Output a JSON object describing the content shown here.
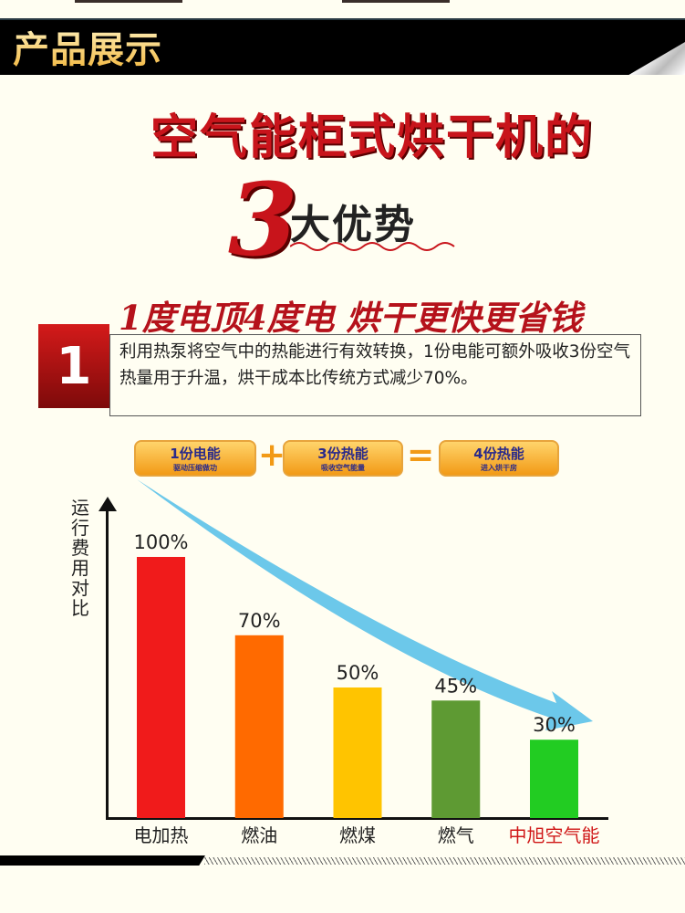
{
  "banner": {
    "title": "产品展示"
  },
  "headline": {
    "line1": "空气能柜式烘干机的",
    "number": "3",
    "line2": "大优势"
  },
  "advantage": {
    "number": "1",
    "slogan": "1度电顶4度电  烘干更快更省钱",
    "description": "利用热泵将空气中的热能进行有效转换，1份电能可额外吸收3份空气热量用于升温，烘干成本比传统方式减少70%。"
  },
  "equation": {
    "items": [
      {
        "title": "1份电能",
        "sub": "驱动压缩做功"
      },
      {
        "title": "3份热能",
        "sub": "吸收空气能量"
      },
      {
        "title": "4份热能",
        "sub": "进入烘干房"
      }
    ],
    "plus": "+",
    "equals": "="
  },
  "chart_data": {
    "type": "bar",
    "ylabel": "运行费用对比",
    "categories": [
      "电加热",
      "燃油",
      "燃煤",
      "燃气",
      "中旭空气能"
    ],
    "values": [
      100,
      70,
      50,
      45,
      30
    ],
    "labels": [
      "100%",
      "70%",
      "50%",
      "45%",
      "30%"
    ],
    "colors": [
      "#f01b1b",
      "#ff6a00",
      "#ffc400",
      "#5e9a33",
      "#22cc22"
    ],
    "highlight_category_color": "#d01818",
    "ylim": [
      0,
      100
    ],
    "grid": false,
    "annotation": "downward trend arrow",
    "arrow_color": "#6cc8ea"
  }
}
